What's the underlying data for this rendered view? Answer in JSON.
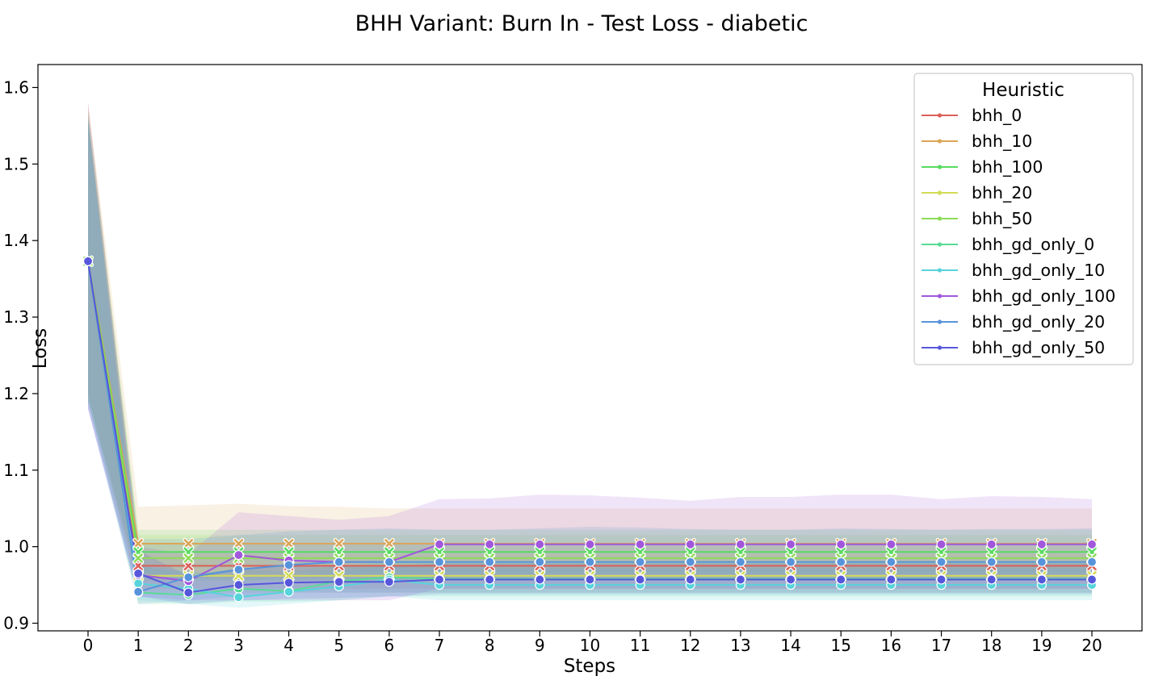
{
  "chart_data": {
    "type": "line",
    "title": "BHH Variant: Burn In - Test Loss - diabetic",
    "xlabel": "Steps",
    "ylabel": "Loss",
    "xlim": [
      0,
      20
    ],
    "ylim": [
      0.89,
      1.63
    ],
    "x": [
      0,
      1,
      2,
      3,
      4,
      5,
      6,
      7,
      8,
      9,
      10,
      11,
      12,
      13,
      14,
      15,
      16,
      17,
      18,
      19,
      20
    ],
    "yticks": [
      0.9,
      1.0,
      1.1,
      1.2,
      1.3,
      1.4,
      1.5,
      1.6
    ],
    "ytick_labels": [
      "0.9",
      "1.0",
      "1.1",
      "1.2",
      "1.3",
      "1.4",
      "1.5",
      "1.6"
    ],
    "xtick_labels": [
      "0",
      "1",
      "2",
      "3",
      "4",
      "5",
      "6",
      "7",
      "8",
      "9",
      "10",
      "11",
      "12",
      "13",
      "14",
      "15",
      "16",
      "17",
      "18",
      "19",
      "20"
    ],
    "grid": false,
    "legend": {
      "title": "Heuristic",
      "position": "top-right"
    },
    "series": [
      {
        "name": "bhh_0",
        "color": "#db5f57",
        "marker": "x",
        "values": [
          1.373,
          0.975,
          0.975,
          0.975,
          0.975,
          0.975,
          0.975,
          0.975,
          0.975,
          0.975,
          0.975,
          0.975,
          0.975,
          0.975,
          0.975,
          0.975,
          0.975,
          0.975,
          0.975,
          0.975,
          0.975
        ],
        "lower": [
          1.2,
          0.945,
          0.945,
          0.945,
          0.945,
          0.945,
          0.945,
          0.945,
          0.945,
          0.945,
          0.945,
          0.945,
          0.945,
          0.945,
          0.945,
          0.945,
          0.945,
          0.945,
          0.945,
          0.945,
          0.945
        ],
        "upper": [
          1.58,
          1.005,
          1.005,
          1.005,
          1.005,
          1.005,
          1.005,
          1.005,
          1.005,
          1.005,
          1.005,
          1.005,
          1.005,
          1.005,
          1.005,
          1.005,
          1.005,
          1.005,
          1.005,
          1.005,
          1.005
        ]
      },
      {
        "name": "bhh_10",
        "color": "#dba557",
        "marker": "x",
        "values": [
          1.373,
          1.004,
          1.004,
          1.004,
          1.004,
          1.004,
          1.004,
          1.004,
          1.004,
          1.004,
          1.004,
          1.004,
          1.004,
          1.004,
          1.004,
          1.004,
          1.004,
          1.004,
          1.004,
          1.004,
          1.004
        ],
        "lower": [
          1.2,
          0.96,
          0.958,
          0.957,
          0.958,
          0.958,
          0.958,
          0.958,
          0.958,
          0.958,
          0.958,
          0.958,
          0.958,
          0.958,
          0.958,
          0.958,
          0.958,
          0.958,
          0.958,
          0.958,
          0.958
        ],
        "upper": [
          1.58,
          1.052,
          1.054,
          1.056,
          1.053,
          1.052,
          1.05,
          1.05,
          1.05,
          1.05,
          1.05,
          1.05,
          1.05,
          1.05,
          1.05,
          1.05,
          1.05,
          1.05,
          1.05,
          1.05,
          1.05
        ]
      },
      {
        "name": "bhh_100",
        "color": "#57db5f",
        "marker": "x",
        "values": [
          1.373,
          0.993,
          0.993,
          0.993,
          0.993,
          0.993,
          0.993,
          0.993,
          0.993,
          0.993,
          0.993,
          0.993,
          0.993,
          0.993,
          0.993,
          0.993,
          0.993,
          0.993,
          0.993,
          0.993,
          0.993
        ],
        "lower": [
          1.19,
          0.965,
          0.965,
          0.965,
          0.965,
          0.965,
          0.965,
          0.965,
          0.965,
          0.965,
          0.965,
          0.965,
          0.965,
          0.965,
          0.965,
          0.965,
          0.965,
          0.965,
          0.965,
          0.965,
          0.965
        ],
        "upper": [
          1.57,
          1.022,
          1.022,
          1.022,
          1.022,
          1.022,
          1.022,
          1.022,
          1.022,
          1.022,
          1.022,
          1.022,
          1.022,
          1.022,
          1.022,
          1.022,
          1.022,
          1.022,
          1.022,
          1.022,
          1.022
        ]
      },
      {
        "name": "bhh_20",
        "color": "#d3db57",
        "marker": "x",
        "values": [
          1.373,
          0.962,
          0.962,
          0.962,
          0.962,
          0.962,
          0.962,
          0.962,
          0.962,
          0.962,
          0.962,
          0.962,
          0.962,
          0.962,
          0.962,
          0.962,
          0.962,
          0.962,
          0.962,
          0.962,
          0.962
        ],
        "lower": [
          1.19,
          0.94,
          0.94,
          0.94,
          0.94,
          0.94,
          0.94,
          0.94,
          0.94,
          0.94,
          0.94,
          0.94,
          0.94,
          0.94,
          0.94,
          0.94,
          0.94,
          0.94,
          0.94,
          0.94,
          0.94
        ],
        "upper": [
          1.56,
          0.99,
          0.99,
          0.99,
          0.99,
          0.99,
          0.99,
          0.99,
          0.99,
          0.99,
          0.99,
          0.99,
          0.99,
          0.99,
          0.99,
          0.99,
          0.99,
          0.99,
          0.99,
          0.99,
          0.99
        ]
      },
      {
        "name": "bhh_50",
        "color": "#8ddb57",
        "marker": "x",
        "values": [
          1.373,
          0.985,
          0.985,
          0.985,
          0.985,
          0.985,
          0.985,
          0.985,
          0.985,
          0.985,
          0.985,
          0.985,
          0.985,
          0.985,
          0.985,
          0.985,
          0.985,
          0.985,
          0.985,
          0.985,
          0.985
        ],
        "lower": [
          1.19,
          0.955,
          0.955,
          0.955,
          0.955,
          0.955,
          0.955,
          0.955,
          0.955,
          0.955,
          0.955,
          0.955,
          0.955,
          0.955,
          0.955,
          0.955,
          0.955,
          0.955,
          0.955,
          0.955,
          0.955
        ],
        "upper": [
          1.57,
          1.015,
          1.015,
          1.015,
          1.015,
          1.015,
          1.015,
          1.015,
          1.015,
          1.015,
          1.015,
          1.015,
          1.015,
          1.015,
          1.015,
          1.015,
          1.015,
          1.015,
          1.015,
          1.015,
          1.015
        ]
      },
      {
        "name": "bhh_gd_only_0",
        "color": "#57db95",
        "marker": "o",
        "values": [
          1.373,
          0.94,
          0.937,
          0.945,
          0.942,
          0.955,
          0.96,
          0.958,
          0.958,
          0.958,
          0.958,
          0.958,
          0.958,
          0.958,
          0.958,
          0.958,
          0.958,
          0.958,
          0.958,
          0.958,
          0.958
        ],
        "lower": [
          1.19,
          0.925,
          0.925,
          0.928,
          0.928,
          0.93,
          0.935,
          0.935,
          0.935,
          0.935,
          0.935,
          0.935,
          0.935,
          0.935,
          0.935,
          0.935,
          0.935,
          0.935,
          0.935,
          0.935,
          0.935
        ],
        "upper": [
          1.56,
          0.975,
          0.965,
          0.97,
          0.968,
          0.975,
          0.98,
          0.98,
          0.98,
          0.98,
          0.98,
          0.98,
          0.98,
          0.98,
          0.98,
          0.98,
          0.98,
          0.98,
          0.98,
          0.98,
          0.98
        ]
      },
      {
        "name": "bhh_gd_only_10",
        "color": "#57d3db",
        "marker": "o",
        "values": [
          1.373,
          0.952,
          0.945,
          0.934,
          0.941,
          0.948,
          0.957,
          0.95,
          0.95,
          0.95,
          0.95,
          0.95,
          0.95,
          0.95,
          0.95,
          0.95,
          0.95,
          0.95,
          0.95,
          0.95,
          0.95
        ],
        "lower": [
          1.19,
          0.93,
          0.925,
          0.92,
          0.925,
          0.93,
          0.935,
          0.93,
          0.93,
          0.93,
          0.93,
          0.93,
          0.93,
          0.93,
          0.93,
          0.93,
          0.93,
          0.93,
          0.93,
          0.93,
          0.93
        ],
        "upper": [
          1.56,
          0.975,
          0.968,
          0.96,
          0.962,
          0.968,
          0.975,
          0.972,
          0.972,
          0.972,
          0.972,
          0.972,
          0.972,
          0.972,
          0.972,
          0.972,
          0.972,
          0.972,
          0.972,
          0.972,
          0.972
        ]
      },
      {
        "name": "bhh_gd_only_100",
        "color": "#a157db",
        "marker": "o",
        "values": [
          1.373,
          0.963,
          0.955,
          0.989,
          0.982,
          0.98,
          0.98,
          1.003,
          1.003,
          1.003,
          1.003,
          1.003,
          1.003,
          1.003,
          1.003,
          1.003,
          1.003,
          1.003,
          1.003,
          1.003,
          1.003
        ],
        "lower": [
          1.18,
          0.935,
          0.93,
          0.93,
          0.93,
          0.93,
          0.93,
          0.945,
          0.945,
          0.945,
          0.945,
          0.945,
          0.945,
          0.945,
          0.945,
          0.945,
          0.945,
          0.945,
          0.945,
          0.945,
          0.945
        ],
        "upper": [
          1.58,
          1.0,
          0.99,
          1.045,
          1.04,
          1.035,
          1.04,
          1.062,
          1.063,
          1.068,
          1.067,
          1.064,
          1.06,
          1.065,
          1.065,
          1.068,
          1.068,
          1.062,
          1.066,
          1.065,
          1.062
        ]
      },
      {
        "name": "bhh_gd_only_20",
        "color": "#5793db",
        "marker": "o",
        "values": [
          1.373,
          0.941,
          0.96,
          0.97,
          0.976,
          0.98,
          0.98,
          0.98,
          0.98,
          0.98,
          0.98,
          0.98,
          0.98,
          0.98,
          0.98,
          0.98,
          0.98,
          0.98,
          0.98,
          0.98,
          0.98
        ],
        "lower": [
          1.18,
          0.925,
          0.93,
          0.935,
          0.94,
          0.94,
          0.94,
          0.94,
          0.94,
          0.94,
          0.94,
          0.94,
          0.94,
          0.94,
          0.94,
          0.94,
          0.94,
          0.94,
          0.94,
          0.94,
          0.94
        ],
        "upper": [
          1.56,
          1.01,
          1.01,
          1.015,
          1.02,
          1.022,
          1.024,
          1.022,
          1.022,
          1.024,
          1.026,
          1.025,
          1.023,
          1.022,
          1.022,
          1.024,
          1.023,
          1.022,
          1.023,
          1.023,
          1.024
        ]
      },
      {
        "name": "bhh_gd_only_50",
        "color": "#5757db",
        "marker": "o",
        "values": [
          1.373,
          0.965,
          0.94,
          0.95,
          0.953,
          0.954,
          0.954,
          0.957,
          0.957,
          0.957,
          0.957,
          0.957,
          0.957,
          0.957,
          0.957,
          0.957,
          0.957,
          0.957,
          0.957,
          0.957,
          0.957
        ],
        "lower": [
          1.18,
          0.935,
          0.925,
          0.93,
          0.932,
          0.933,
          0.935,
          0.938,
          0.938,
          0.938,
          0.938,
          0.938,
          0.938,
          0.938,
          0.938,
          0.938,
          0.938,
          0.938,
          0.938,
          0.938,
          0.938
        ],
        "upper": [
          1.56,
          0.995,
          0.962,
          0.972,
          0.975,
          0.975,
          0.975,
          0.978,
          0.978,
          0.978,
          0.978,
          0.978,
          0.978,
          0.978,
          0.978,
          0.978,
          0.978,
          0.978,
          0.978,
          0.978,
          0.978
        ]
      }
    ]
  }
}
